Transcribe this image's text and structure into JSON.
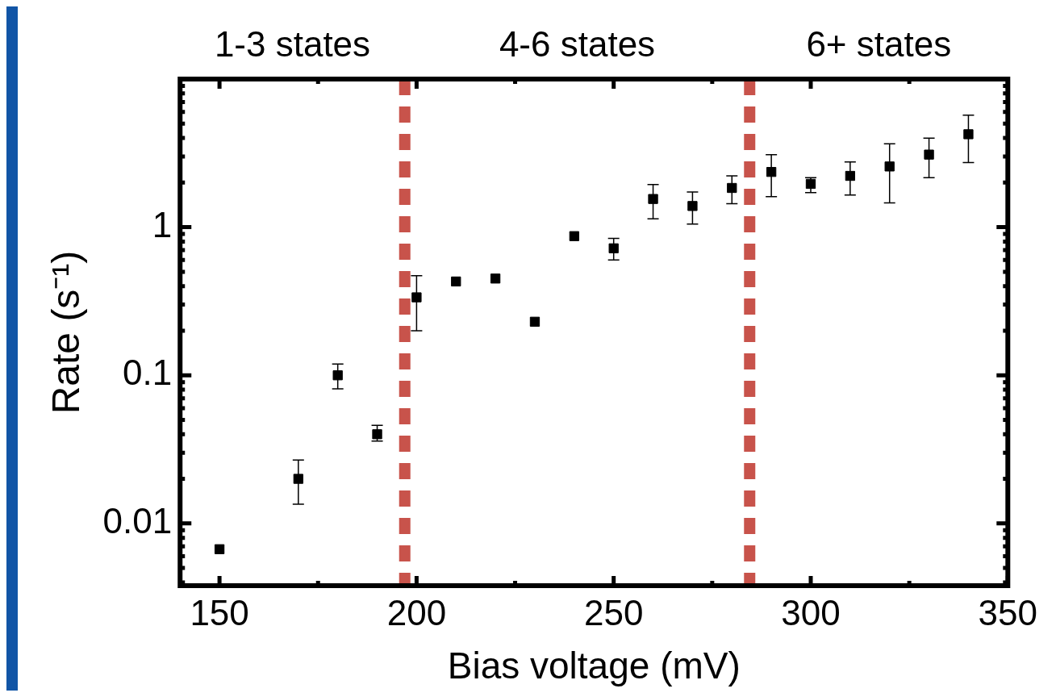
{
  "chart_data": {
    "type": "scatter",
    "xlabel": "Bias voltage (mV)",
    "ylabel": "Rate (s⁻¹)",
    "annotations": [
      "1-3 states",
      "4-6 states",
      "6+ states"
    ],
    "x": [
      150,
      170,
      180,
      190,
      200,
      210,
      220,
      230,
      240,
      250,
      260,
      270,
      280,
      290,
      300,
      310,
      320,
      330,
      340
    ],
    "series": [
      {
        "color": "#000000",
        "values": [
          0.0067,
          0.02,
          0.1,
          0.04,
          0.336,
          0.43,
          0.45,
          0.23,
          0.87,
          0.72,
          1.55,
          1.39,
          1.84,
          2.36,
          1.96,
          2.22,
          2.57,
          3.09,
          4.24
        ],
        "errors": [
          null,
          [
            0.0135,
            0.0268
          ],
          [
            0.081,
            0.119
          ],
          [
            0.036,
            0.046
          ],
          [
            0.2,
            0.47
          ],
          null,
          null,
          null,
          null,
          [
            0.6,
            0.84
          ],
          [
            1.14,
            1.94
          ],
          [
            1.05,
            1.73
          ],
          [
            1.44,
            2.22
          ],
          [
            1.61,
            3.09
          ],
          [
            1.71,
            2.16
          ],
          [
            1.65,
            2.76
          ],
          [
            1.46,
            3.66
          ],
          [
            2.16,
            3.99
          ],
          [
            2.73,
            5.7
          ]
        ]
      }
    ],
    "marker": "square",
    "log": "y",
    "grid": false,
    "xlim": [
      140,
      350
    ],
    "xticks": [
      150,
      {
        "value": 175,
        "label": null
      },
      200,
      {
        "value": 225,
        "label": null
      },
      250,
      {
        "value": 275,
        "label": null
      },
      300,
      {
        "value": 325,
        "label": null
      },
      350
    ],
    "ylim": [
      0.0038,
      10
    ],
    "yticks": [
      {
        "value": 0.004,
        "label": null
      },
      {
        "value": 0.005,
        "label": null
      },
      {
        "value": 0.006,
        "label": null
      },
      {
        "value": 0.007,
        "label": null
      },
      {
        "value": 0.008,
        "label": null
      },
      {
        "value": 0.009,
        "label": null
      },
      0.01,
      {
        "value": 0.02,
        "label": null
      },
      {
        "value": 0.03,
        "label": null
      },
      {
        "value": 0.04,
        "label": null
      },
      {
        "value": 0.05,
        "label": null
      },
      {
        "value": 0.06,
        "label": null
      },
      {
        "value": 0.07,
        "label": null
      },
      {
        "value": 0.08,
        "label": null
      },
      {
        "value": 0.09,
        "label": null
      },
      0.1,
      {
        "value": 0.2,
        "label": null
      },
      {
        "value": 0.3,
        "label": null
      },
      {
        "value": 0.4,
        "label": null
      },
      {
        "value": 0.5,
        "label": null
      },
      {
        "value": 0.6,
        "label": null
      },
      {
        "value": 0.7,
        "label": null
      },
      {
        "value": 0.8,
        "label": null
      },
      {
        "value": 0.9,
        "label": null
      },
      1,
      {
        "value": 2,
        "label": null
      },
      {
        "value": 3,
        "label": null
      },
      {
        "value": 4,
        "label": null
      },
      {
        "value": 5,
        "label": null
      },
      {
        "value": 6,
        "label": null
      },
      {
        "value": 7,
        "label": null
      },
      {
        "value": 8,
        "label": null
      },
      {
        "value": 9,
        "label": null
      }
    ],
    "ref_lines": [
      {
        "axis": "x",
        "value": 197,
        "color": "#c8534b",
        "line_style": "dashed"
      },
      {
        "axis": "x",
        "value": 284.5,
        "color": "#c8534b",
        "line_style": "dashed"
      }
    ]
  }
}
